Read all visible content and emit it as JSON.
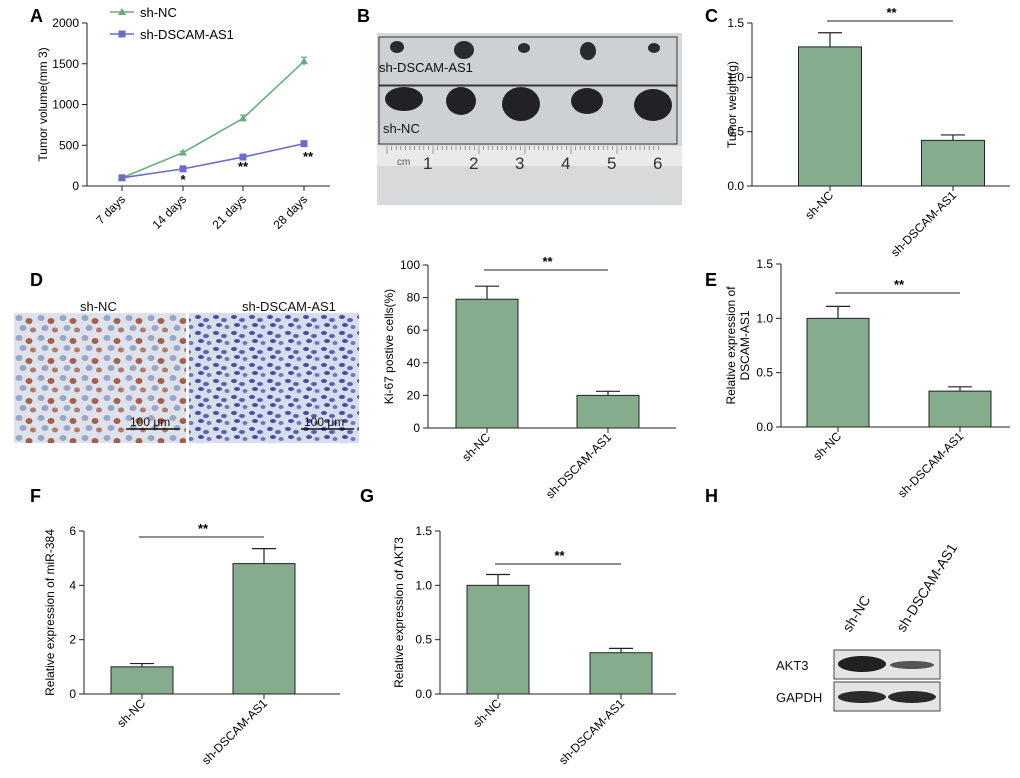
{
  "colors": {
    "bar": "#85ad8d",
    "sh_nc_line": "#6aab7c",
    "sh_dscam_line": "#6c6cc8",
    "axis": "#222222"
  },
  "panels": {
    "A": "A",
    "B": "B",
    "C": "C",
    "D": "D",
    "E": "E",
    "F": "F",
    "G": "G",
    "H": "H"
  },
  "photo_b": {
    "top_label": "sh-DSCAM-AS1",
    "bottom_label": "sh-NC",
    "ruler_unit": "cm",
    "ruler_numbers": [
      "1",
      "2",
      "3",
      "4",
      "5",
      "6"
    ]
  },
  "photo_d": {
    "left_label": "sh-NC",
    "right_label": "sh-DSCAM-AS1",
    "scale_left": "100 μm",
    "scale_right": "100 μm"
  },
  "blot_h": {
    "lane_labels": [
      "sh-NC",
      "sh-DSCAM-AS1"
    ],
    "rows": [
      "AKT3",
      "GAPDH"
    ]
  },
  "chart_data": [
    {
      "panel": "A",
      "type": "line",
      "x": [
        "7 days",
        "14 days",
        "21 days",
        "28 days"
      ],
      "series": [
        {
          "name": "sh-NC",
          "values": [
            100,
            410,
            830,
            1530
          ],
          "errors": [
            0,
            15,
            40,
            50
          ]
        },
        {
          "name": "sh-DSCAM-AS1",
          "values": [
            100,
            210,
            355,
            520
          ],
          "errors": [
            0,
            10,
            15,
            20
          ]
        }
      ],
      "ylabel": "Tumor volume(mm 3)",
      "ylim": [
        0,
        2000
      ],
      "yticks": [
        0,
        500,
        1000,
        1500,
        2000
      ],
      "annotations": [
        "*",
        "**",
        "**"
      ],
      "legend": "top-left"
    },
    {
      "panel": "C",
      "type": "bar",
      "categories": [
        "sh-NC",
        "sh-DSCAM-AS1"
      ],
      "values": [
        1.28,
        0.42
      ],
      "errors": [
        0.13,
        0.05
      ],
      "ylabel": "Tumor weight(g)",
      "ylim": [
        0,
        1.5
      ],
      "yticks": [
        "0.0",
        "0.5",
        "1.0",
        "1.5"
      ],
      "significance": "**"
    },
    {
      "panel": "D-right",
      "type": "bar",
      "categories": [
        "sh-NC",
        "sh-DSCAM-AS1"
      ],
      "values": [
        79,
        20
      ],
      "errors": [
        8,
        2.5
      ],
      "ylabel": "Ki-67 postive cells(%)",
      "ylim": [
        0,
        100
      ],
      "yticks": [
        "0",
        "20",
        "40",
        "60",
        "80",
        "100"
      ],
      "significance": "**"
    },
    {
      "panel": "E",
      "type": "bar",
      "categories": [
        "sh-NC",
        "sh-DSCAM-AS1"
      ],
      "values": [
        1.0,
        0.33
      ],
      "errors": [
        0.11,
        0.04
      ],
      "ylabel": "Relative expression of DSCAM-AS1",
      "ylim": [
        0,
        1.5
      ],
      "yticks": [
        "0.0",
        "0.5",
        "1.0",
        "1.5"
      ],
      "significance": "**"
    },
    {
      "panel": "F",
      "type": "bar",
      "categories": [
        "sh-NC",
        "sh-DSCAM-AS1"
      ],
      "values": [
        1.0,
        4.8
      ],
      "errors": [
        0.12,
        0.55
      ],
      "ylabel": "Relative expression of miR-384",
      "ylim": [
        0,
        6
      ],
      "yticks": [
        "0",
        "2",
        "4",
        "6"
      ],
      "significance": "**"
    },
    {
      "panel": "G",
      "type": "bar",
      "categories": [
        "sh-NC",
        "sh-DSCAM-AS1"
      ],
      "values": [
        1.0,
        0.38
      ],
      "errors": [
        0.1,
        0.04
      ],
      "ylabel": "Relative expression of AKT3",
      "ylim": [
        0,
        1.5
      ],
      "yticks": [
        "0.0",
        "0.5",
        "1.0",
        "1.5"
      ],
      "significance": "**"
    }
  ]
}
